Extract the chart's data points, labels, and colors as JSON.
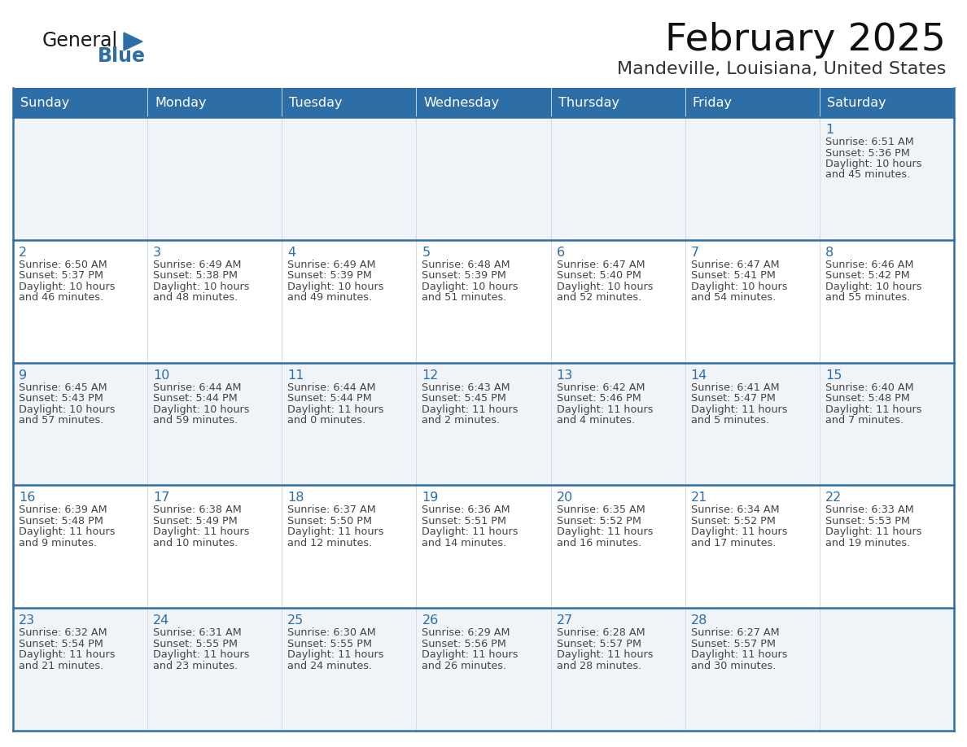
{
  "title": "February 2025",
  "subtitle": "Mandeville, Louisiana, United States",
  "days_of_week": [
    "Sunday",
    "Monday",
    "Tuesday",
    "Wednesday",
    "Thursday",
    "Friday",
    "Saturday"
  ],
  "header_bg_color": "#2E6EA6",
  "header_text_color": "#FFFFFF",
  "cell_bg_odd": "#F0F4F8",
  "cell_bg_even": "#FFFFFF",
  "border_color": "#2E6EA6",
  "cell_border_color": "#C8D8E8",
  "day_number_color": "#2E6EA6",
  "text_color": "#444444",
  "logo_general_color": "#1A1A1A",
  "logo_blue_color": "#2E6EA6",
  "title_color": "#111111",
  "subtitle_color": "#333333",
  "calendar_data": [
    [
      null,
      null,
      null,
      null,
      null,
      null,
      {
        "day": 1,
        "sunrise": "6:51 AM",
        "sunset": "5:36 PM",
        "daylight_l1": "Daylight: 10 hours",
        "daylight_l2": "and 45 minutes."
      }
    ],
    [
      {
        "day": 2,
        "sunrise": "6:50 AM",
        "sunset": "5:37 PM",
        "daylight_l1": "Daylight: 10 hours",
        "daylight_l2": "and 46 minutes."
      },
      {
        "day": 3,
        "sunrise": "6:49 AM",
        "sunset": "5:38 PM",
        "daylight_l1": "Daylight: 10 hours",
        "daylight_l2": "and 48 minutes."
      },
      {
        "day": 4,
        "sunrise": "6:49 AM",
        "sunset": "5:39 PM",
        "daylight_l1": "Daylight: 10 hours",
        "daylight_l2": "and 49 minutes."
      },
      {
        "day": 5,
        "sunrise": "6:48 AM",
        "sunset": "5:39 PM",
        "daylight_l1": "Daylight: 10 hours",
        "daylight_l2": "and 51 minutes."
      },
      {
        "day": 6,
        "sunrise": "6:47 AM",
        "sunset": "5:40 PM",
        "daylight_l1": "Daylight: 10 hours",
        "daylight_l2": "and 52 minutes."
      },
      {
        "day": 7,
        "sunrise": "6:47 AM",
        "sunset": "5:41 PM",
        "daylight_l1": "Daylight: 10 hours",
        "daylight_l2": "and 54 minutes."
      },
      {
        "day": 8,
        "sunrise": "6:46 AM",
        "sunset": "5:42 PM",
        "daylight_l1": "Daylight: 10 hours",
        "daylight_l2": "and 55 minutes."
      }
    ],
    [
      {
        "day": 9,
        "sunrise": "6:45 AM",
        "sunset": "5:43 PM",
        "daylight_l1": "Daylight: 10 hours",
        "daylight_l2": "and 57 minutes."
      },
      {
        "day": 10,
        "sunrise": "6:44 AM",
        "sunset": "5:44 PM",
        "daylight_l1": "Daylight: 10 hours",
        "daylight_l2": "and 59 minutes."
      },
      {
        "day": 11,
        "sunrise": "6:44 AM",
        "sunset": "5:44 PM",
        "daylight_l1": "Daylight: 11 hours",
        "daylight_l2": "and 0 minutes."
      },
      {
        "day": 12,
        "sunrise": "6:43 AM",
        "sunset": "5:45 PM",
        "daylight_l1": "Daylight: 11 hours",
        "daylight_l2": "and 2 minutes."
      },
      {
        "day": 13,
        "sunrise": "6:42 AM",
        "sunset": "5:46 PM",
        "daylight_l1": "Daylight: 11 hours",
        "daylight_l2": "and 4 minutes."
      },
      {
        "day": 14,
        "sunrise": "6:41 AM",
        "sunset": "5:47 PM",
        "daylight_l1": "Daylight: 11 hours",
        "daylight_l2": "and 5 minutes."
      },
      {
        "day": 15,
        "sunrise": "6:40 AM",
        "sunset": "5:48 PM",
        "daylight_l1": "Daylight: 11 hours",
        "daylight_l2": "and 7 minutes."
      }
    ],
    [
      {
        "day": 16,
        "sunrise": "6:39 AM",
        "sunset": "5:48 PM",
        "daylight_l1": "Daylight: 11 hours",
        "daylight_l2": "and 9 minutes."
      },
      {
        "day": 17,
        "sunrise": "6:38 AM",
        "sunset": "5:49 PM",
        "daylight_l1": "Daylight: 11 hours",
        "daylight_l2": "and 10 minutes."
      },
      {
        "day": 18,
        "sunrise": "6:37 AM",
        "sunset": "5:50 PM",
        "daylight_l1": "Daylight: 11 hours",
        "daylight_l2": "and 12 minutes."
      },
      {
        "day": 19,
        "sunrise": "6:36 AM",
        "sunset": "5:51 PM",
        "daylight_l1": "Daylight: 11 hours",
        "daylight_l2": "and 14 minutes."
      },
      {
        "day": 20,
        "sunrise": "6:35 AM",
        "sunset": "5:52 PM",
        "daylight_l1": "Daylight: 11 hours",
        "daylight_l2": "and 16 minutes."
      },
      {
        "day": 21,
        "sunrise": "6:34 AM",
        "sunset": "5:52 PM",
        "daylight_l1": "Daylight: 11 hours",
        "daylight_l2": "and 17 minutes."
      },
      {
        "day": 22,
        "sunrise": "6:33 AM",
        "sunset": "5:53 PM",
        "daylight_l1": "Daylight: 11 hours",
        "daylight_l2": "and 19 minutes."
      }
    ],
    [
      {
        "day": 23,
        "sunrise": "6:32 AM",
        "sunset": "5:54 PM",
        "daylight_l1": "Daylight: 11 hours",
        "daylight_l2": "and 21 minutes."
      },
      {
        "day": 24,
        "sunrise": "6:31 AM",
        "sunset": "5:55 PM",
        "daylight_l1": "Daylight: 11 hours",
        "daylight_l2": "and 23 minutes."
      },
      {
        "day": 25,
        "sunrise": "6:30 AM",
        "sunset": "5:55 PM",
        "daylight_l1": "Daylight: 11 hours",
        "daylight_l2": "and 24 minutes."
      },
      {
        "day": 26,
        "sunrise": "6:29 AM",
        "sunset": "5:56 PM",
        "daylight_l1": "Daylight: 11 hours",
        "daylight_l2": "and 26 minutes."
      },
      {
        "day": 27,
        "sunrise": "6:28 AM",
        "sunset": "5:57 PM",
        "daylight_l1": "Daylight: 11 hours",
        "daylight_l2": "and 28 minutes."
      },
      {
        "day": 28,
        "sunrise": "6:27 AM",
        "sunset": "5:57 PM",
        "daylight_l1": "Daylight: 11 hours",
        "daylight_l2": "and 30 minutes."
      },
      null
    ]
  ]
}
